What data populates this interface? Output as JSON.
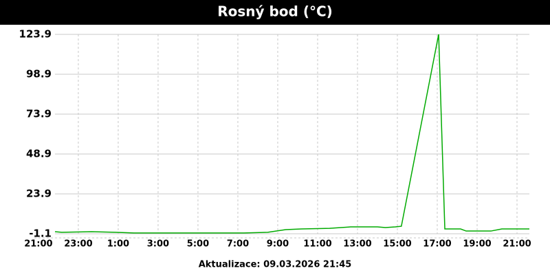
{
  "chart_data": {
    "type": "line",
    "title": "Rosný bod (°C)",
    "footer": "Aktualizace: 09.03.2026 21:45",
    "x": [
      0.83,
      1.17,
      2.66,
      3.86,
      4.79,
      10.3,
      11.5,
      12.4,
      13.2,
      14.6,
      15.66,
      17.0,
      17.4,
      17.9,
      18.2,
      20.07,
      20.38,
      21.17,
      21.45,
      22.69,
      23.24,
      24.62
    ],
    "series": [
      {
        "name": "Rosný bod",
        "color": "#00aa00",
        "values": [
          0.2,
          -0.2,
          0.2,
          -0.2,
          -0.6,
          -0.6,
          -0.2,
          1.5,
          1.9,
          2.3,
          3.2,
          3.2,
          2.8,
          3.2,
          3.6,
          123.9,
          1.9,
          1.9,
          0.6,
          0.6,
          1.9,
          1.9
        ]
      }
    ],
    "xlim": [
      0.83,
      24.62
    ],
    "xticks": [
      {
        "value": 0,
        "label": "21:00"
      },
      {
        "value": 2,
        "label": "23:00"
      },
      {
        "value": 4,
        "label": "1:00"
      },
      {
        "value": 6,
        "label": "3:00"
      },
      {
        "value": 8,
        "label": "5:00"
      },
      {
        "value": 10,
        "label": "7:00"
      },
      {
        "value": 12,
        "label": "9:00"
      },
      {
        "value": 14,
        "label": "11:00"
      },
      {
        "value": 16,
        "label": "13:00"
      },
      {
        "value": 18,
        "label": "15:00"
      },
      {
        "value": 20,
        "label": "17:00"
      },
      {
        "value": 22,
        "label": "19:00"
      },
      {
        "value": 24,
        "label": "21:00"
      }
    ],
    "ylim": [
      -1.1,
      123.9
    ],
    "yticks": [
      -1.1,
      23.9,
      48.9,
      73.9,
      98.9,
      123.9
    ],
    "grid": true
  }
}
